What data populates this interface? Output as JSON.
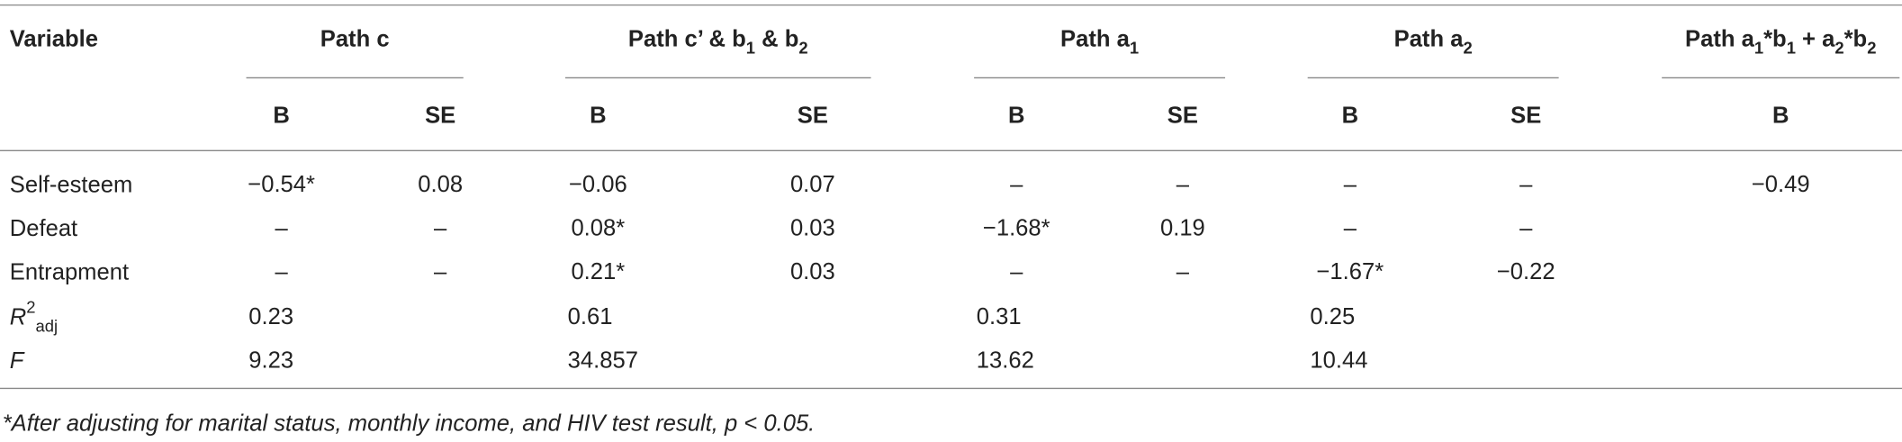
{
  "table": {
    "header": {
      "variable": "Variable",
      "groups": [
        {
          "title": [
            {
              "text": "Path c"
            }
          ],
          "columns": [
            "B",
            "SE"
          ]
        },
        {
          "title": [
            {
              "text": "Path c’ & b"
            },
            {
              "sub": "1"
            },
            {
              "text": " & b"
            },
            {
              "sub": "2"
            }
          ],
          "columns": [
            "B",
            "SE"
          ]
        },
        {
          "title": [
            {
              "text": "Path a"
            },
            {
              "sub": "1"
            }
          ],
          "columns": [
            "B",
            "SE"
          ]
        },
        {
          "title": [
            {
              "text": "Path a"
            },
            {
              "sub": "2"
            }
          ],
          "columns": [
            "B",
            "SE"
          ]
        },
        {
          "title": [
            {
              "text": "Path a"
            },
            {
              "sub": "1"
            },
            {
              "text": "*b"
            },
            {
              "sub": "1"
            },
            {
              "text": " + a"
            },
            {
              "sub": "2"
            },
            {
              "text": "*b"
            },
            {
              "sub": "2"
            }
          ],
          "columns": [
            "B"
          ]
        }
      ]
    },
    "rows": [
      {
        "label": [
          {
            "text": "Self-esteem"
          }
        ],
        "cells": [
          "−0.54*",
          "0.08",
          "−0.06",
          "0.07",
          "–",
          "–",
          "–",
          "–",
          "−0.49"
        ]
      },
      {
        "label": [
          {
            "text": "Defeat"
          }
        ],
        "cells": [
          "–",
          "–",
          "0.08*",
          "0.03",
          "−1.68*",
          "0.19",
          "–",
          "–",
          null
        ]
      },
      {
        "label": [
          {
            "text": "Entrapment"
          }
        ],
        "cells": [
          "–",
          "–",
          "0.21*",
          "0.03",
          "–",
          "–",
          "−1.67*",
          "−0.22",
          null
        ]
      },
      {
        "label": [
          {
            "text": "R",
            "style": "italic"
          },
          {
            "sup": "2"
          },
          {
            "sub": "adj"
          }
        ],
        "cells": [
          "0.23",
          null,
          "0.61",
          null,
          "0.31",
          null,
          "0.25",
          null,
          null
        ]
      },
      {
        "label": [
          {
            "text": "F",
            "style": "italic"
          }
        ],
        "cells": [
          "9.23",
          null,
          "34.857",
          null,
          "13.62",
          null,
          "10.44",
          null,
          null
        ]
      }
    ],
    "footnote": "*After adjusting for marital status, monthly income, and HIV test result, p < 0.05."
  }
}
